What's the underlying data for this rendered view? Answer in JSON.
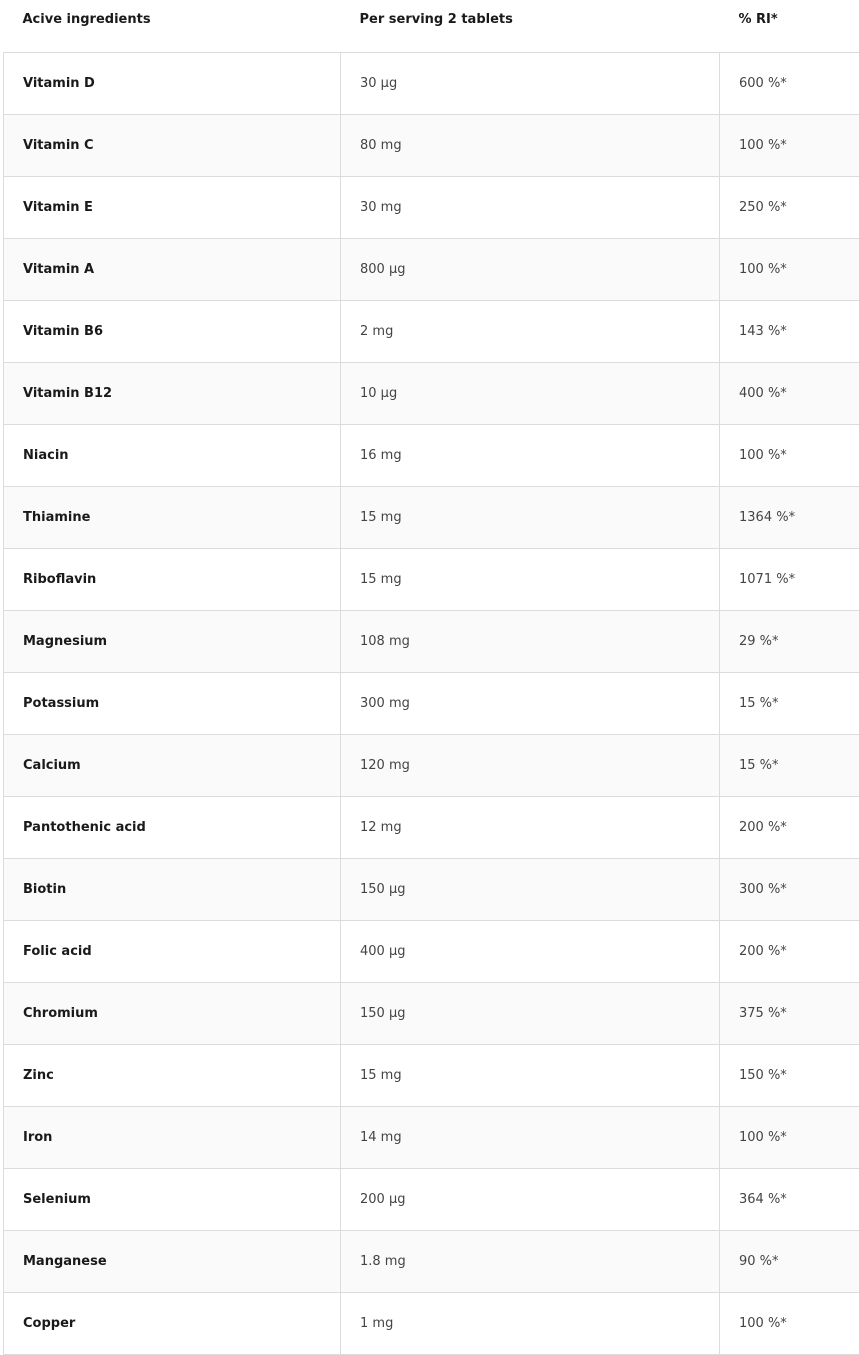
{
  "table": {
    "headers": [
      "Acive ingredients",
      "Per serving 2 tablets",
      "% RI*"
    ],
    "rows": [
      [
        "Vitamin D",
        "30 µg",
        "600 %*"
      ],
      [
        "Vitamin C",
        "80 mg",
        "100 %*"
      ],
      [
        "Vitamin E",
        "30 mg",
        "250 %*"
      ],
      [
        "Vitamin A",
        "800 µg",
        "100 %*"
      ],
      [
        "Vitamin B6",
        "2 mg",
        "143 %*"
      ],
      [
        "Vitamin B12",
        "10 µg",
        "400 %*"
      ],
      [
        "Niacin",
        "16 mg",
        "100 %*"
      ],
      [
        "Thiamine",
        "15 mg",
        "1364 %*"
      ],
      [
        "Riboflavin",
        "15 mg",
        "1071 %*"
      ],
      [
        "Magnesium",
        "108 mg",
        "29 %*"
      ],
      [
        "Potassium",
        "300 mg",
        "15 %*"
      ],
      [
        "Calcium",
        "120 mg",
        "15 %*"
      ],
      [
        "Pantothenic acid",
        "12 mg",
        "200 %*"
      ],
      [
        "Biotin",
        "150 µg",
        "300 %*"
      ],
      [
        "Folic acid",
        "400 µg",
        "200 %*"
      ],
      [
        "Chromium",
        "150 µg",
        "375 %*"
      ],
      [
        "Zinc",
        "15 mg",
        "150 %*"
      ],
      [
        "Iron",
        "14 mg",
        "100 %*"
      ],
      [
        "Selenium",
        "200 µg",
        "364 %*"
      ],
      [
        "Manganese",
        "1.8 mg",
        "90 %*"
      ],
      [
        "Copper",
        "1 mg",
        "100 %*"
      ]
    ]
  }
}
